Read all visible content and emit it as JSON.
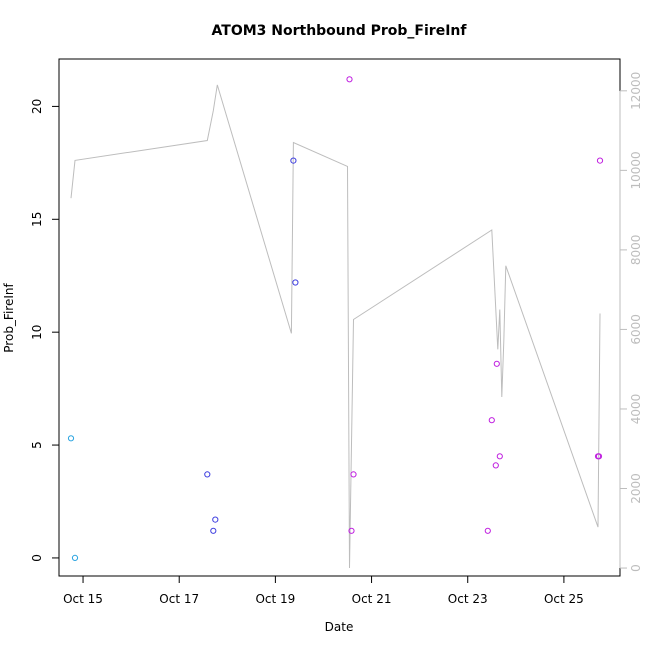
{
  "chart_data": {
    "type": "scatter",
    "title": "ATOM3 Northbound Prob_FireInf",
    "xlabel": "Date",
    "ylabel": "Prob_FireInf",
    "x_ticks": [
      "Oct 15",
      "Oct 17",
      "Oct 19",
      "Oct 21",
      "Oct 23",
      "Oct 25"
    ],
    "x_tick_values": [
      "2023-10-15",
      "2023-10-17",
      "2023-10-19",
      "2023-10-21",
      "2023-10-23",
      "2023-10-25"
    ],
    "xlim": [
      "2023-10-14T12:00",
      "2023-10-26T04:00"
    ],
    "ylim": [
      -0.8,
      22.1
    ],
    "y_ticks": [
      0,
      5,
      10,
      15,
      20
    ],
    "y2lim": [
      -200,
      12800
    ],
    "y2_ticks": [
      0,
      2000,
      4000,
      6000,
      8000,
      10000,
      12000
    ],
    "grid": false,
    "points": [
      {
        "x": "2023-10-14T18:00",
        "y": 5.3,
        "color": "#29a3e0"
      },
      {
        "x": "2023-10-14T20:00",
        "y": 0.0,
        "color": "#29a3e0"
      },
      {
        "x": "2023-10-17T14:00",
        "y": 3.7,
        "color": "#3f3fe0"
      },
      {
        "x": "2023-10-17T17:00",
        "y": 1.2,
        "color": "#3f3fe0"
      },
      {
        "x": "2023-10-17T18:00",
        "y": 1.7,
        "color": "#3f3fe0"
      },
      {
        "x": "2023-10-19T09:00",
        "y": 17.6,
        "color": "#3f3fe0"
      },
      {
        "x": "2023-10-19T10:00",
        "y": 12.2,
        "color": "#3f3fe0"
      },
      {
        "x": "2023-10-20T13:00",
        "y": 21.2,
        "color": "#c020e0"
      },
      {
        "x": "2023-10-20T14:00",
        "y": 1.2,
        "color": "#c020e0"
      },
      {
        "x": "2023-10-20T15:00",
        "y": 3.7,
        "color": "#c020e0"
      },
      {
        "x": "2023-10-23T10:00",
        "y": 1.2,
        "color": "#c020e0"
      },
      {
        "x": "2023-10-23T12:00",
        "y": 6.1,
        "color": "#c020e0"
      },
      {
        "x": "2023-10-23T14:00",
        "y": 4.1,
        "color": "#c020e0"
      },
      {
        "x": "2023-10-23T14:30",
        "y": 8.6,
        "color": "#c020e0"
      },
      {
        "x": "2023-10-23T16:00",
        "y": 4.5,
        "color": "#c020e0"
      },
      {
        "x": "2023-10-25T17:00",
        "y": 4.5,
        "color": "#c020e0"
      },
      {
        "x": "2023-10-25T17:30",
        "y": 4.5,
        "color": "#c020e0"
      },
      {
        "x": "2023-10-25T18:00",
        "y": 17.6,
        "color": "#c020e0"
      }
    ],
    "secondary_line": {
      "color": "#bdbdbd",
      "points": [
        {
          "x": "2023-10-14T18:00",
          "y": 9300
        },
        {
          "x": "2023-10-14T20:00",
          "y": 10250
        },
        {
          "x": "2023-10-17T14:00",
          "y": 10750
        },
        {
          "x": "2023-10-17T17:00",
          "y": 11500
        },
        {
          "x": "2023-10-17T19:00",
          "y": 12150
        },
        {
          "x": "2023-10-19T08:00",
          "y": 5900
        },
        {
          "x": "2023-10-19T09:00",
          "y": 10700
        },
        {
          "x": "2023-10-20T12:00",
          "y": 10100
        },
        {
          "x": "2023-10-20T13:00",
          "y": 0
        },
        {
          "x": "2023-10-20T15:00",
          "y": 6250
        },
        {
          "x": "2023-10-23T12:00",
          "y": 8500
        },
        {
          "x": "2023-10-23T15:00",
          "y": 5500
        },
        {
          "x": "2023-10-23T16:00",
          "y": 6500
        },
        {
          "x": "2023-10-23T17:00",
          "y": 4300
        },
        {
          "x": "2023-10-23T18:00",
          "y": 5700
        },
        {
          "x": "2023-10-23T19:00",
          "y": 7600
        },
        {
          "x": "2023-10-25T17:00",
          "y": 1030
        },
        {
          "x": "2023-10-25T18:00",
          "y": 6400
        }
      ]
    }
  }
}
